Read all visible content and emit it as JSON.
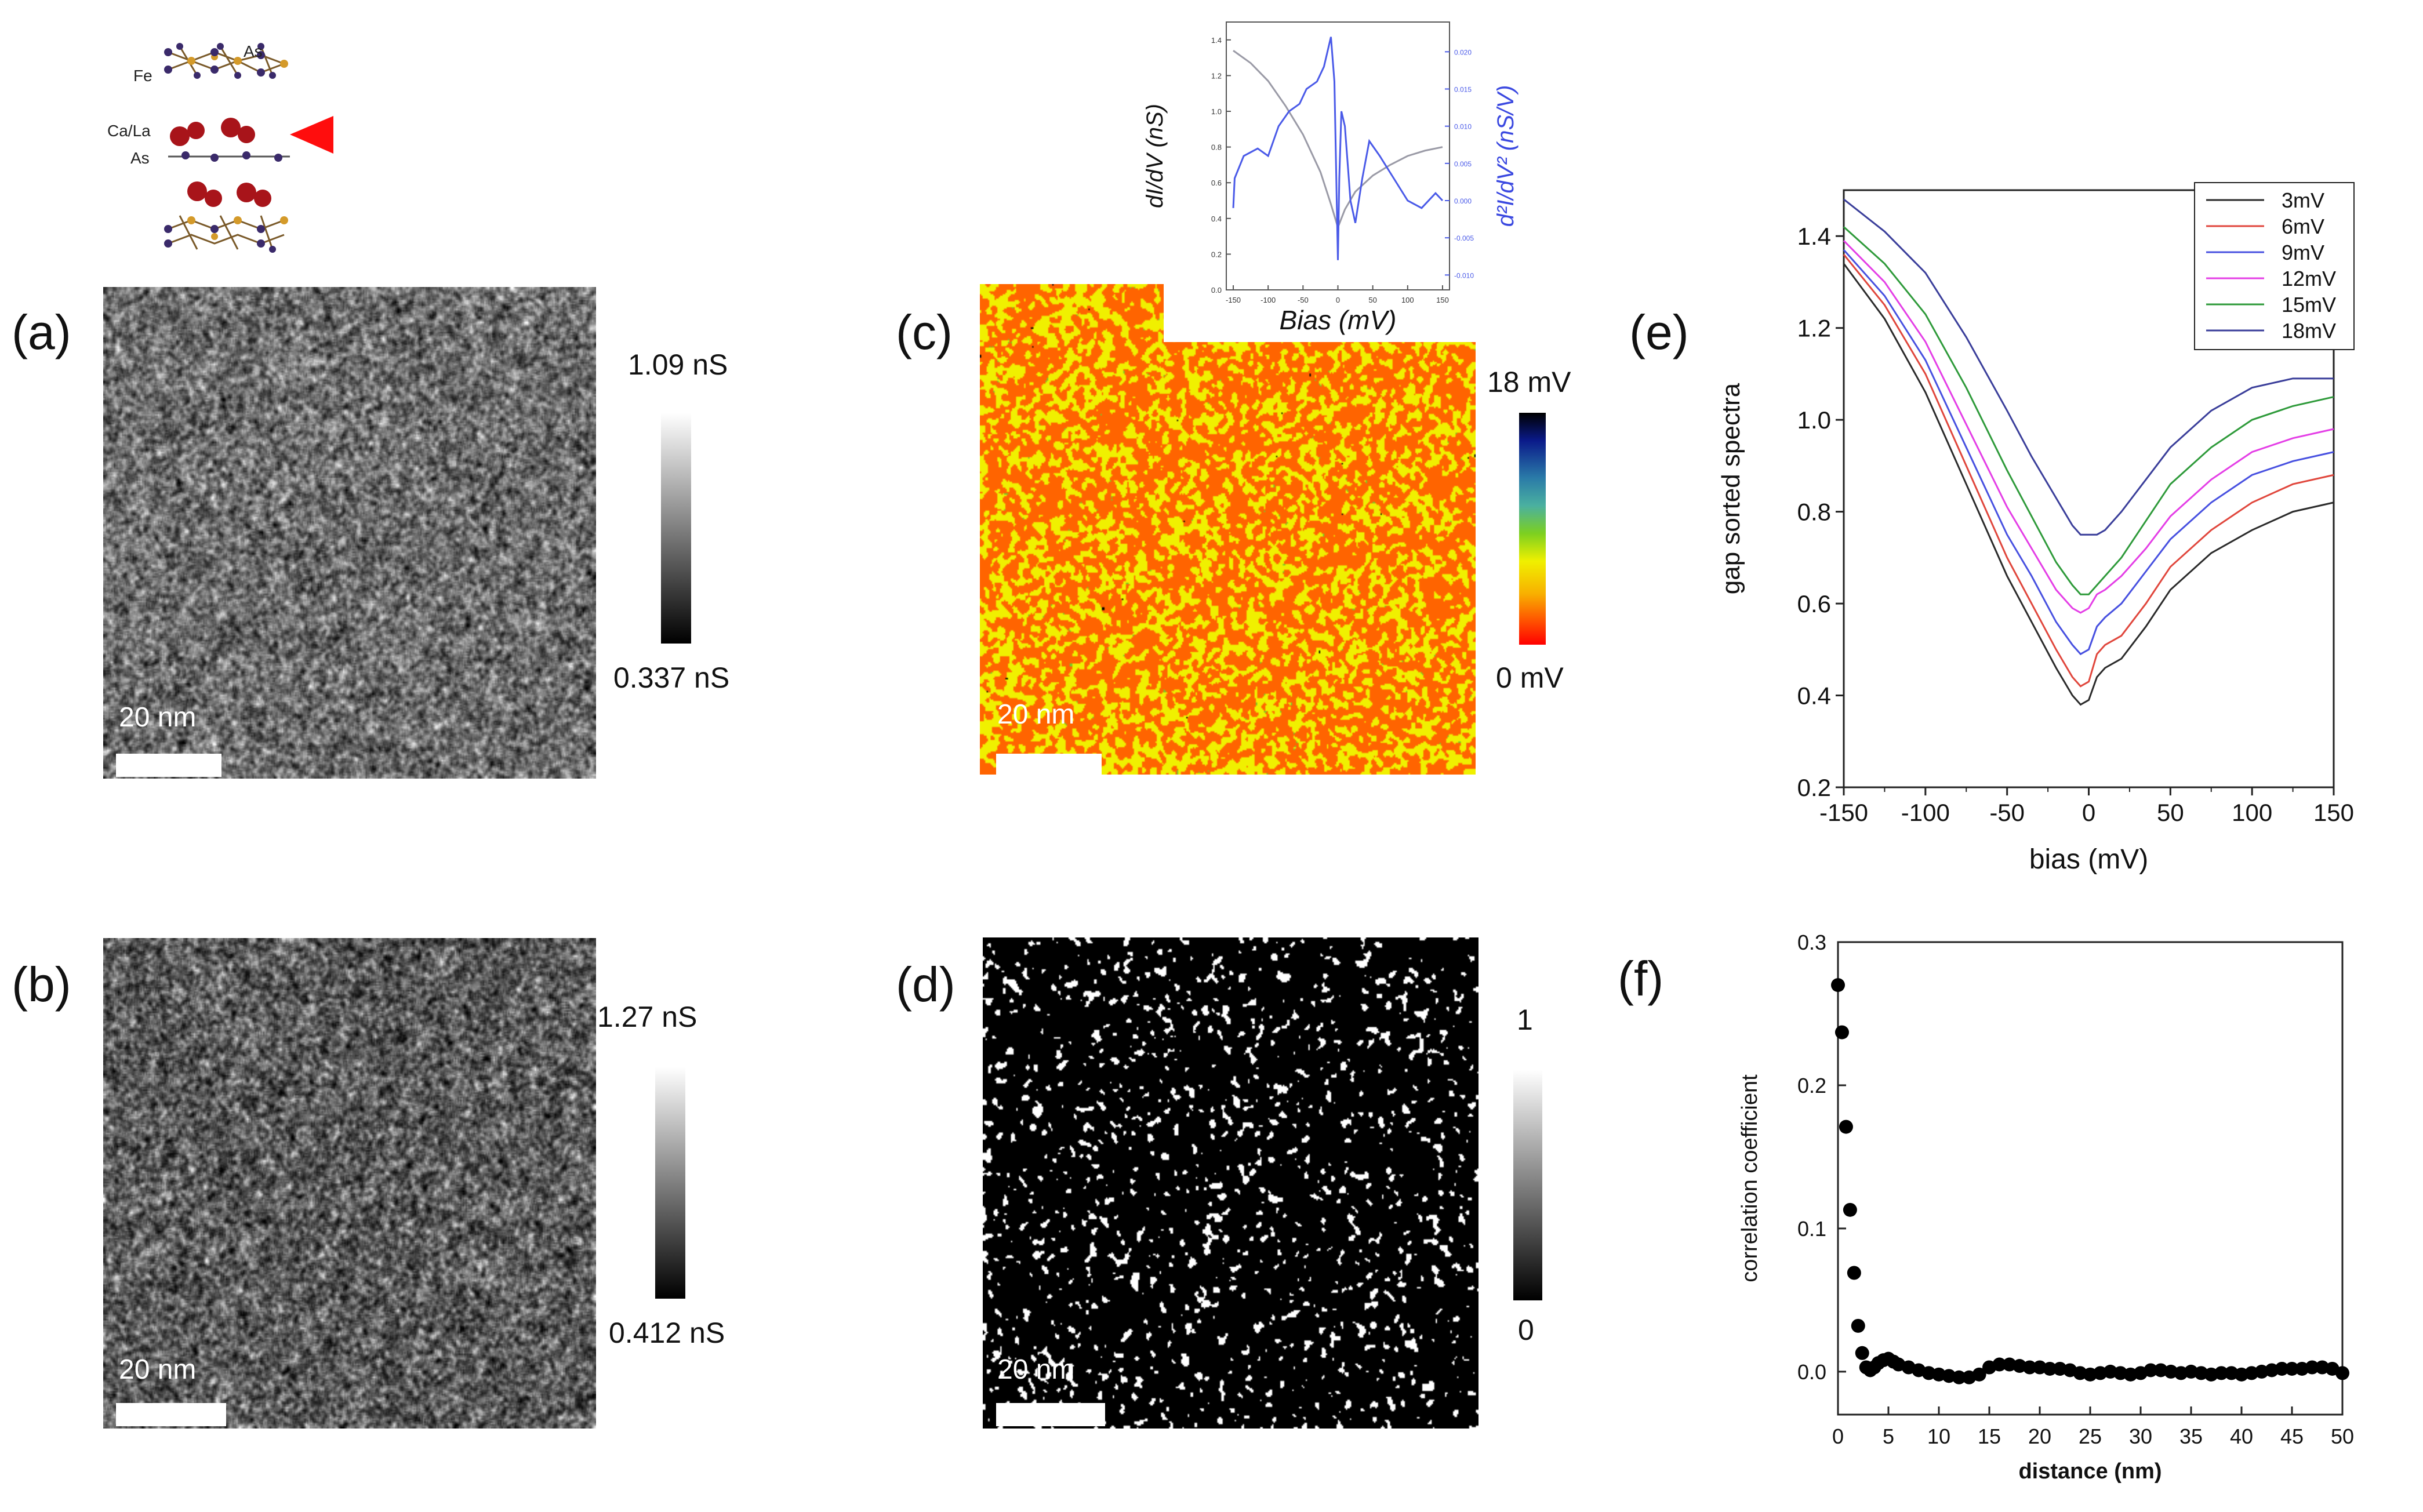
{
  "crystal": {
    "labels": [
      "Fe",
      "As",
      "Ca/La",
      "As"
    ]
  },
  "panels": {
    "a": {
      "label": "(a)",
      "cbar_max": "1.09 nS",
      "cbar_min": "0.337 nS",
      "scalebar": "20 nm"
    },
    "b": {
      "label": "(b)",
      "cbar_max": "1.27 nS",
      "cbar_min": "0.412 nS",
      "scalebar": "20 nm"
    },
    "c": {
      "label": "(c)",
      "cbar_max": "18 mV",
      "cbar_min": "0 mV",
      "scalebar": "20 nm"
    },
    "d": {
      "label": "(d)",
      "cbar_max": "1",
      "cbar_min": "0",
      "scalebar": "20 nm"
    },
    "e": {
      "label": "(e)"
    },
    "f": {
      "label": "(f)"
    }
  },
  "inset": {
    "xlabel": "Bias (mV)",
    "ylabel_left": "dI/dV (nS)",
    "ylabel_right": "d²I/dV² (nS/V)"
  },
  "chart_data": [
    {
      "id": "inset",
      "type": "line",
      "title": "",
      "xlabel": "Bias (mV)",
      "ylabel": "dI/dV (nS)",
      "y2label": "d²I/dV² (nS/V)",
      "xlim": [
        -160,
        160
      ],
      "ylim": [
        0.0,
        1.5
      ],
      "y2lim": [
        -0.012,
        0.024
      ],
      "x_ticks": [
        -150,
        -100,
        -50,
        0,
        50,
        100,
        150
      ],
      "y_ticks": [
        0.0,
        0.2,
        0.4,
        0.6,
        0.8,
        1.0,
        1.2,
        1.4
      ],
      "y2_ticks": [
        -0.01,
        -0.005,
        0.0,
        0.005,
        0.01,
        0.015,
        0.02
      ],
      "series": [
        {
          "name": "dI/dV",
          "axis": "left",
          "color": "#9a9aa6",
          "x": [
            -150,
            -125,
            -100,
            -75,
            -50,
            -25,
            -10,
            0,
            10,
            25,
            50,
            75,
            100,
            125,
            150
          ],
          "values": [
            1.34,
            1.27,
            1.17,
            1.03,
            0.87,
            0.66,
            0.48,
            0.35,
            0.45,
            0.55,
            0.64,
            0.7,
            0.75,
            0.78,
            0.8
          ]
        },
        {
          "name": "d²I/dV²",
          "axis": "right",
          "color": "#4a5ae8",
          "x": [
            -150,
            -148,
            -135,
            -115,
            -100,
            -85,
            -70,
            -55,
            -45,
            -30,
            -20,
            -10,
            -5,
            0,
            2,
            5,
            10,
            18,
            25,
            35,
            45,
            60,
            80,
            100,
            120,
            140,
            150
          ],
          "values": [
            -0.001,
            0.003,
            0.006,
            0.007,
            0.006,
            0.01,
            0.012,
            0.013,
            0.015,
            0.016,
            0.018,
            0.022,
            0.016,
            -0.008,
            0.003,
            0.012,
            0.01,
            0.0,
            -0.003,
            0.003,
            0.008,
            0.006,
            0.003,
            0.0,
            -0.001,
            0.001,
            0.0
          ]
        }
      ]
    },
    {
      "id": "e",
      "type": "line",
      "title": "",
      "xlabel": "bias (mV)",
      "ylabel": "gap sorted spectra",
      "xlim": [
        -150,
        150
      ],
      "ylim": [
        0.2,
        1.5
      ],
      "x_ticks": [
        -150,
        -100,
        -50,
        0,
        50,
        100,
        150
      ],
      "y_ticks": [
        0.2,
        0.4,
        0.6,
        0.8,
        1.0,
        1.2,
        1.4
      ],
      "legend_position": "top-right",
      "x": [
        -150,
        -125,
        -100,
        -75,
        -50,
        -35,
        -20,
        -10,
        -5,
        0,
        5,
        10,
        20,
        35,
        50,
        75,
        100,
        125,
        150
      ],
      "series": [
        {
          "name": "3mV",
          "color": "#2a2a2a",
          "values": [
            1.34,
            1.22,
            1.06,
            0.86,
            0.66,
            0.56,
            0.46,
            0.4,
            0.38,
            0.39,
            0.44,
            0.46,
            0.48,
            0.55,
            0.63,
            0.71,
            0.76,
            0.8,
            0.82
          ]
        },
        {
          "name": "6mV",
          "color": "#e0463c",
          "values": [
            1.36,
            1.25,
            1.1,
            0.9,
            0.7,
            0.6,
            0.5,
            0.44,
            0.42,
            0.43,
            0.49,
            0.51,
            0.53,
            0.6,
            0.68,
            0.76,
            0.82,
            0.86,
            0.88
          ]
        },
        {
          "name": "9mV",
          "color": "#4750e0",
          "values": [
            1.37,
            1.27,
            1.13,
            0.94,
            0.75,
            0.66,
            0.56,
            0.51,
            0.49,
            0.5,
            0.55,
            0.57,
            0.6,
            0.67,
            0.74,
            0.82,
            0.88,
            0.91,
            0.93
          ]
        },
        {
          "name": "12mV",
          "color": "#e43ee6",
          "values": [
            1.39,
            1.3,
            1.17,
            0.99,
            0.81,
            0.72,
            0.63,
            0.59,
            0.58,
            0.59,
            0.62,
            0.63,
            0.66,
            0.72,
            0.79,
            0.87,
            0.93,
            0.96,
            0.98
          ]
        },
        {
          "name": "15mV",
          "color": "#2e9a3a",
          "values": [
            1.42,
            1.34,
            1.23,
            1.07,
            0.89,
            0.79,
            0.69,
            0.64,
            0.62,
            0.62,
            0.64,
            0.66,
            0.7,
            0.78,
            0.86,
            0.94,
            1.0,
            1.03,
            1.05
          ]
        },
        {
          "name": "18mV",
          "color": "#3a3e9a",
          "values": [
            1.48,
            1.41,
            1.32,
            1.18,
            1.02,
            0.92,
            0.83,
            0.77,
            0.75,
            0.75,
            0.75,
            0.76,
            0.8,
            0.87,
            0.94,
            1.02,
            1.07,
            1.09,
            1.09
          ]
        }
      ]
    },
    {
      "id": "f",
      "type": "scatter",
      "title": "",
      "xlabel": "distance (nm)",
      "ylabel": "correlation coefficient",
      "xlim": [
        0,
        50
      ],
      "ylim": [
        -0.03,
        0.3
      ],
      "x_ticks": [
        0,
        5,
        10,
        15,
        20,
        25,
        30,
        35,
        40,
        45,
        50
      ],
      "y_ticks": [
        0.0,
        0.1,
        0.2,
        0.3
      ],
      "x": [
        0.0,
        0.4,
        0.8,
        1.2,
        1.6,
        2.0,
        2.4,
        2.8,
        3.2,
        3.6,
        4.0,
        4.5,
        5.0,
        5.5,
        6.0,
        7.0,
        8.0,
        9.0,
        10.0,
        11.0,
        12.0,
        13.0,
        14.0,
        15.0,
        16.0,
        17.0,
        18.0,
        19.0,
        20.0,
        21.0,
        22.0,
        23.0,
        24.0,
        25.0,
        26.0,
        27.0,
        28.0,
        29.0,
        30.0,
        31.0,
        32.0,
        33.0,
        34.0,
        35.0,
        36.0,
        37.0,
        38.0,
        39.0,
        40.0,
        41.0,
        42.0,
        43.0,
        44.0,
        45.0,
        46.0,
        47.0,
        48.0,
        49.0,
        50.0
      ],
      "values": [
        0.27,
        0.237,
        0.171,
        0.113,
        0.069,
        0.032,
        0.013,
        0.003,
        0.001,
        0.003,
        0.006,
        0.008,
        0.009,
        0.007,
        0.005,
        0.003,
        0.001,
        -0.001,
        -0.002,
        -0.003,
        -0.004,
        -0.004,
        -0.002,
        0.003,
        0.005,
        0.005,
        0.004,
        0.003,
        0.003,
        0.002,
        0.002,
        0.001,
        -0.001,
        -0.002,
        -0.001,
        0.0,
        -0.001,
        -0.002,
        -0.001,
        0.001,
        0.001,
        0.0,
        -0.001,
        0.0,
        -0.001,
        -0.002,
        -0.001,
        -0.001,
        -0.002,
        -0.001,
        0.0,
        0.001,
        0.002,
        0.002,
        0.002,
        0.003,
        0.003,
        0.002,
        -0.001
      ]
    }
  ]
}
